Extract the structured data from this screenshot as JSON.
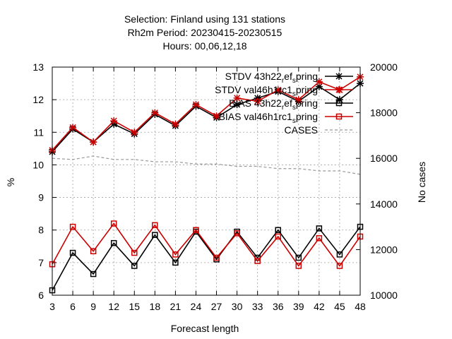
{
  "header": {
    "line1": "Selection: Finland using   131 stations",
    "line2": "Rh2m   Period: 20230415-20230515",
    "line3": "Hours:  00,06,12,18"
  },
  "chart_data": {
    "type": "line",
    "xlabel": "Forecast length",
    "ylabel": "%",
    "y2label": "No cases",
    "x": [
      3,
      6,
      9,
      12,
      15,
      18,
      21,
      24,
      27,
      30,
      33,
      36,
      39,
      42,
      45,
      48
    ],
    "xlim": [
      3,
      48
    ],
    "ylim": [
      6,
      13
    ],
    "y2lim": [
      10000,
      20000
    ],
    "x_ticks": [
      "3",
      "6",
      "9",
      "12",
      "15",
      "18",
      "21",
      "24",
      "27",
      "30",
      "33",
      "36",
      "39",
      "42",
      "45",
      "48"
    ],
    "y_ticks": [
      "6",
      "7",
      "8",
      "9",
      "10",
      "11",
      "12",
      "13"
    ],
    "y2_ticks": [
      "10000",
      "12000",
      "14000",
      "16000",
      "18000",
      "20000"
    ],
    "grid": true,
    "legend_position": "top-right",
    "series": [
      {
        "name": "STDV 43h22_{r}ef_{s}pring",
        "legend_text": "STDV 43h22",
        "legend_sub": "r",
        "legend_mid": "ef",
        "legend_sub2": "s",
        "legend_tail": "pring",
        "axis": "y1",
        "color": "#000000",
        "marker": "star",
        "values": [
          10.4,
          11.1,
          10.7,
          11.25,
          10.95,
          11.55,
          11.2,
          11.8,
          11.45,
          11.85,
          12.05,
          12.25,
          11.95,
          12.4,
          12.0,
          12.5
        ]
      },
      {
        "name": "STDV val46h1rc1_{s}pring",
        "legend_text": "STDV val46h1rc1",
        "legend_sub": "s",
        "legend_tail": "pring",
        "axis": "y1",
        "color": "#cc0000",
        "marker": "star",
        "values": [
          10.45,
          11.15,
          10.7,
          11.35,
          11.0,
          11.6,
          11.25,
          11.85,
          11.5,
          12.05,
          11.95,
          12.3,
          12.0,
          12.55,
          12.3,
          12.7
        ]
      },
      {
        "name": "BIAS 43h22_{r}ef_{s}pring",
        "legend_text": "BIAS 43h22",
        "legend_sub": "r",
        "legend_mid": "ef",
        "legend_sub2": "s",
        "legend_tail": "pring",
        "axis": "y1",
        "color": "#000000",
        "marker": "square",
        "values": [
          6.15,
          7.3,
          6.65,
          7.6,
          6.9,
          7.85,
          7.0,
          7.95,
          7.1,
          7.95,
          7.15,
          8.0,
          7.15,
          8.05,
          7.25,
          8.1
        ]
      },
      {
        "name": "BIAS val46h1rc1_{s}pring",
        "legend_text": "BIAS val46h1rc1",
        "legend_sub": "s",
        "legend_tail": "pring",
        "axis": "y1",
        "color": "#cc0000",
        "marker": "square",
        "values": [
          6.95,
          8.1,
          7.35,
          8.2,
          7.3,
          8.15,
          7.25,
          8.0,
          7.15,
          7.9,
          7.05,
          7.8,
          6.9,
          7.75,
          6.9,
          7.8
        ]
      },
      {
        "name": "CASES",
        "legend_text": "CASES",
        "axis": "y2",
        "color": "#999999",
        "marker": "none",
        "dashed": true,
        "values": [
          16000,
          15950,
          16100,
          15950,
          15950,
          15850,
          15850,
          15750,
          15750,
          15650,
          15650,
          15550,
          15550,
          15450,
          15450,
          15300
        ]
      }
    ]
  }
}
